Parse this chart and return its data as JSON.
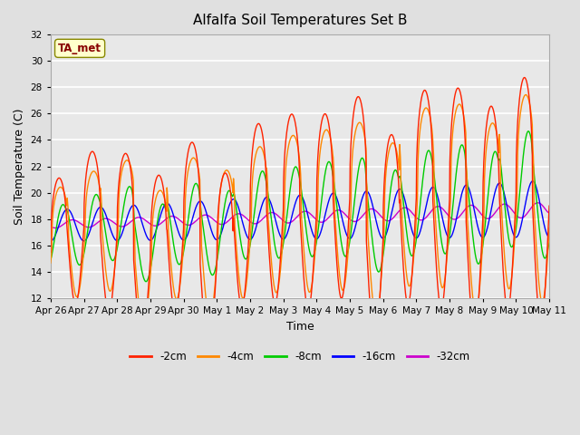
{
  "title": "Alfalfa Soil Temperatures Set B",
  "xlabel": "Time",
  "ylabel": "Soil Temperature (C)",
  "ylim": [
    12,
    32
  ],
  "yticks": [
    12,
    14,
    16,
    18,
    20,
    22,
    24,
    26,
    28,
    30,
    32
  ],
  "background_color": "#e0e0e0",
  "plot_bg_color": "#e8e8e8",
  "grid_color": "#ffffff",
  "annotation_text": "TA_met",
  "annotation_bg": "#ffffcc",
  "annotation_border": "#888800",
  "annotation_text_color": "#880000",
  "series_colors": {
    "-2cm": "#ff2200",
    "-4cm": "#ff8800",
    "-8cm": "#00cc00",
    "-16cm": "#0000ff",
    "-32cm": "#cc00cc"
  },
  "series_labels": [
    "-2cm",
    "-4cm",
    "-8cm",
    "-16cm",
    "-32cm"
  ],
  "x_tick_labels": [
    "Apr 26",
    "Apr 27",
    "Apr 28",
    "Apr 29",
    "Apr 30",
    "May 1",
    "May 2",
    "May 3",
    "May 4",
    "May 5",
    "May 6",
    "May 7",
    "May 8",
    "May 9",
    "May 10",
    "May 11"
  ],
  "n_days": 16,
  "samples_per_day": 96,
  "figsize": [
    6.4,
    4.8
  ],
  "dpi": 100
}
